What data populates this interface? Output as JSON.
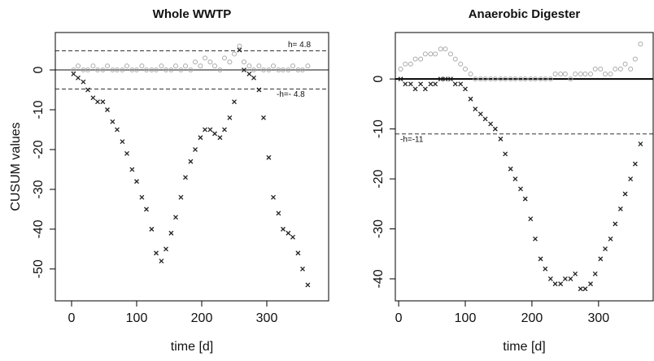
{
  "chart_data": [
    {
      "type": "scatter",
      "title": "Whole WWTP",
      "x_label": "time [d]",
      "y_label": "CUSUM values",
      "xlim": [
        -25,
        395
      ],
      "ylim": [
        -58,
        9.4
      ],
      "xticks": [
        0,
        100,
        200,
        300
      ],
      "yticks": [
        0,
        -10,
        -20,
        -30,
        -40,
        -50
      ],
      "x": [
        3,
        10,
        18,
        25,
        33,
        40,
        48,
        55,
        63,
        70,
        78,
        85,
        93,
        100,
        108,
        115,
        123,
        130,
        138,
        145,
        153,
        160,
        168,
        175,
        183,
        190,
        198,
        205,
        213,
        220,
        228,
        235,
        243,
        250,
        258,
        265,
        273,
        280,
        288,
        295,
        303,
        310,
        318,
        325,
        333,
        340,
        348,
        355,
        363
      ],
      "series": [
        {
          "color": "#aaaaaa",
          "marker": "circle",
          "values": [
            0,
            1,
            0,
            0,
            1,
            0,
            0,
            1,
            0,
            0,
            0,
            1,
            0,
            0,
            1,
            0,
            0,
            0,
            1,
            0,
            0,
            1,
            0,
            1,
            0,
            2,
            1,
            3,
            2,
            1,
            0,
            3,
            2,
            4,
            6,
            2,
            1,
            0,
            1,
            0,
            0,
            1,
            0,
            0,
            0,
            1,
            0,
            0,
            1
          ]
        },
        {
          "color": "#222222",
          "marker": "cross",
          "values": [
            -1,
            -2,
            -3,
            -5,
            -7,
            -8,
            -8,
            -10,
            -13,
            -15,
            -18,
            -21,
            -25,
            -28,
            -32,
            -35,
            -40,
            -46,
            -48,
            -45,
            -41,
            -37,
            -32,
            -27,
            -23,
            -20,
            -17,
            -15,
            -15,
            -16,
            -17,
            -15,
            -12,
            -8,
            5,
            0,
            -1,
            -2,
            -5,
            -12,
            -22,
            -32,
            -36,
            -40,
            -41,
            -42,
            -46,
            -50,
            -54
          ]
        }
      ],
      "hlines": [
        {
          "value": 0,
          "style": "solid",
          "color": "#888888"
        },
        {
          "value": 4.8,
          "style": "dashed",
          "color": "#333333",
          "label": "h= 4.8"
        },
        {
          "value": -4.8,
          "style": "dashed",
          "color": "#333333",
          "label": "-h=- 4.8"
        }
      ]
    },
    {
      "type": "scatter",
      "title": "Anaerobic Digester",
      "x_label": "time [d]",
      "xlim": [
        -5,
        382
      ],
      "ylim": [
        -44.4,
        9.3
      ],
      "xticks": [
        0,
        100,
        200,
        300
      ],
      "yticks": [
        0,
        -10,
        -20,
        -30,
        -40
      ],
      "x": [
        3,
        10,
        18,
        25,
        33,
        40,
        48,
        55,
        63,
        70,
        78,
        85,
        93,
        100,
        108,
        115,
        123,
        130,
        138,
        145,
        153,
        160,
        168,
        175,
        183,
        190,
        198,
        205,
        213,
        220,
        228,
        235,
        243,
        250,
        258,
        265,
        273,
        280,
        288,
        295,
        303,
        310,
        318,
        325,
        333,
        340,
        348,
        355,
        363
      ],
      "series": [
        {
          "color": "#aaaaaa",
          "marker": "circle",
          "values": [
            2,
            3,
            3,
            4,
            4,
            5,
            5,
            5,
            6,
            6,
            5,
            4,
            3,
            2,
            1,
            0,
            0,
            0,
            0,
            0,
            0,
            0,
            0,
            0,
            0,
            0,
            0,
            0,
            0,
            0,
            0,
            1,
            1,
            1,
            0,
            1,
            1,
            1,
            1,
            2,
            2,
            1,
            1,
            2,
            2,
            3,
            2,
            4,
            7
          ]
        },
        {
          "color": "#222222",
          "marker": "cross",
          "values": [
            0,
            -1,
            -1,
            -2,
            -1,
            -2,
            -1,
            -1,
            0,
            0,
            0,
            -1,
            -1,
            -2,
            -4,
            -6,
            -7,
            -8,
            -9,
            -10,
            -12,
            -15,
            -18,
            -20,
            -22,
            -24,
            -28,
            -32,
            -36,
            -38,
            -40,
            -41,
            -41,
            -40,
            -40,
            -39,
            -42,
            -42,
            -41,
            -39,
            -36,
            -34,
            -32,
            -29,
            -26,
            -23,
            -20,
            -17,
            -13
          ]
        }
      ],
      "hlines": [
        {
          "value": 0,
          "style": "solid",
          "color": "#000000"
        },
        {
          "value": -11,
          "style": "dashed",
          "color": "#333333",
          "label": "-h=-11"
        }
      ]
    }
  ]
}
